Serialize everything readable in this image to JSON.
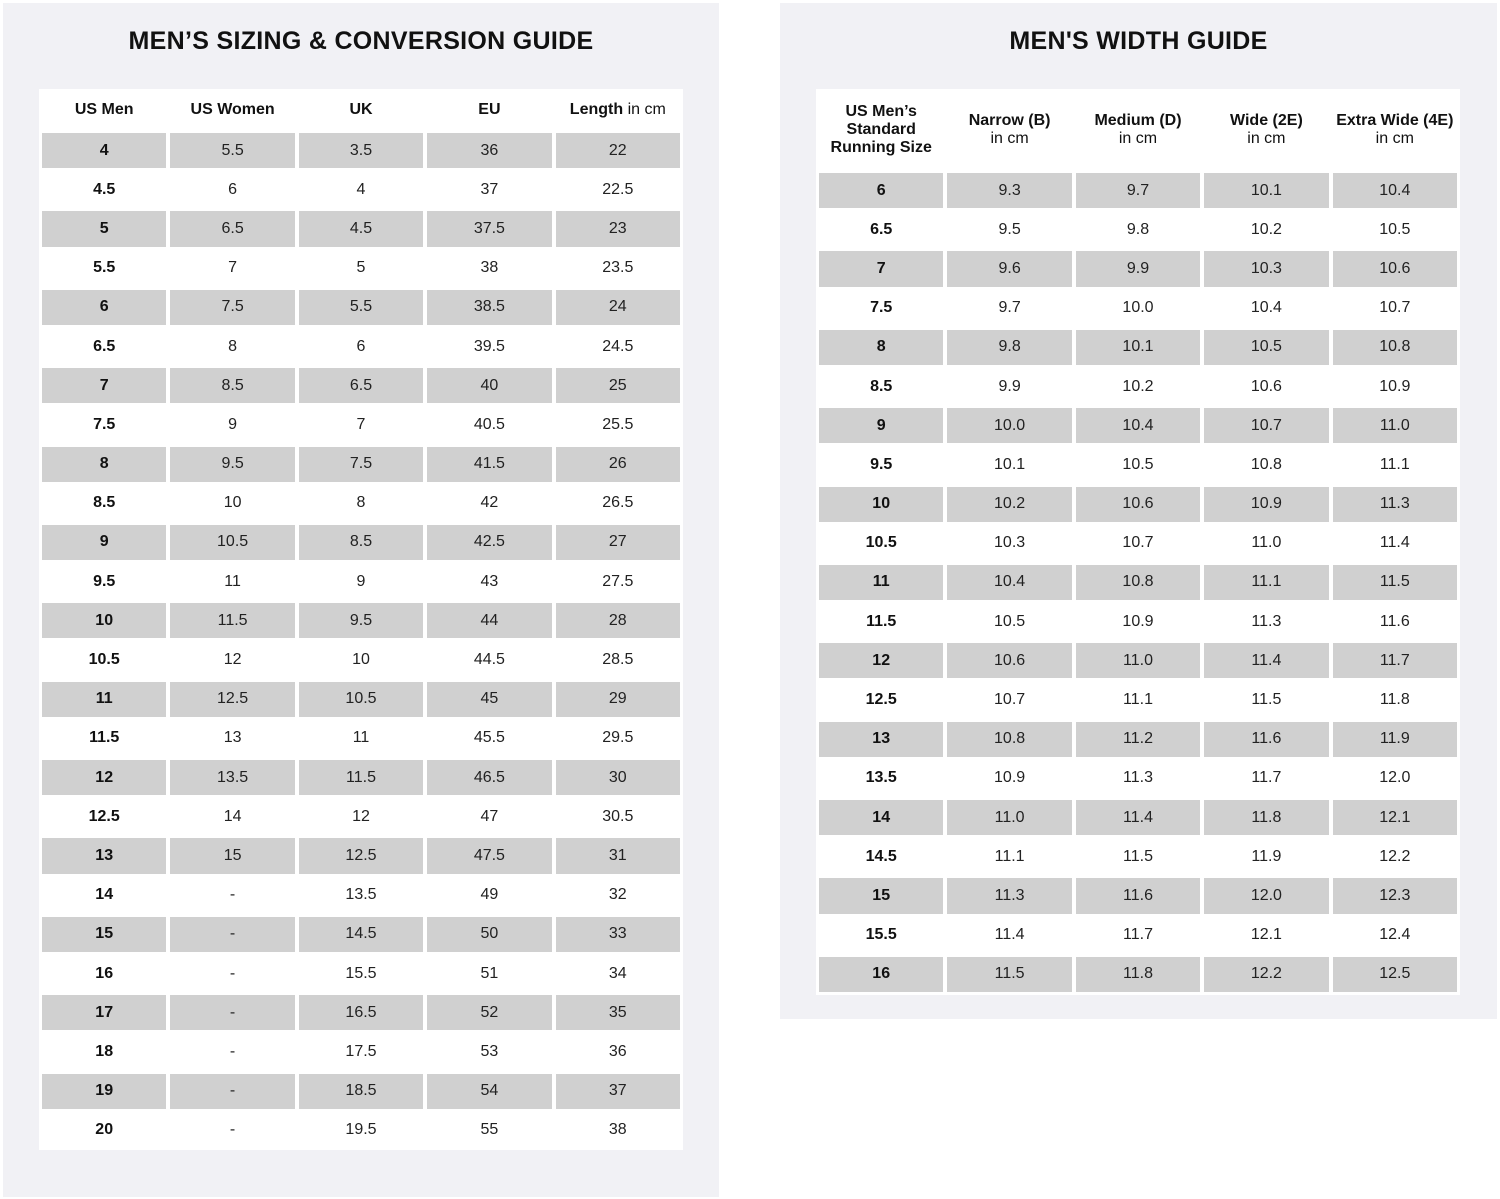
{
  "sizing": {
    "title": "MEN’S SIZING & CONVERSION GUIDE",
    "headers": [
      {
        "b": "US Men",
        "s": ""
      },
      {
        "b": "US Women",
        "s": ""
      },
      {
        "b": "UK",
        "s": ""
      },
      {
        "b": "EU",
        "s": ""
      },
      {
        "b": "Length",
        "s": " in cm"
      }
    ],
    "rows": [
      [
        "4",
        "5.5",
        "3.5",
        "36",
        "22"
      ],
      [
        "4.5",
        "6",
        "4",
        "37",
        "22.5"
      ],
      [
        "5",
        "6.5",
        "4.5",
        "37.5",
        "23"
      ],
      [
        "5.5",
        "7",
        "5",
        "38",
        "23.5"
      ],
      [
        "6",
        "7.5",
        "5.5",
        "38.5",
        "24"
      ],
      [
        "6.5",
        "8",
        "6",
        "39.5",
        "24.5"
      ],
      [
        "7",
        "8.5",
        "6.5",
        "40",
        "25"
      ],
      [
        "7.5",
        "9",
        "7",
        "40.5",
        "25.5"
      ],
      [
        "8",
        "9.5",
        "7.5",
        "41.5",
        "26"
      ],
      [
        "8.5",
        "10",
        "8",
        "42",
        "26.5"
      ],
      [
        "9",
        "10.5",
        "8.5",
        "42.5",
        "27"
      ],
      [
        "9.5",
        "11",
        "9",
        "43",
        "27.5"
      ],
      [
        "10",
        "11.5",
        "9.5",
        "44",
        "28"
      ],
      [
        "10.5",
        "12",
        "10",
        "44.5",
        "28.5"
      ],
      [
        "11",
        "12.5",
        "10.5",
        "45",
        "29"
      ],
      [
        "11.5",
        "13",
        "11",
        "45.5",
        "29.5"
      ],
      [
        "12",
        "13.5",
        "11.5",
        "46.5",
        "30"
      ],
      [
        "12.5",
        "14",
        "12",
        "47",
        "30.5"
      ],
      [
        "13",
        "15",
        "12.5",
        "47.5",
        "31"
      ],
      [
        "14",
        "-",
        "13.5",
        "49",
        "32"
      ],
      [
        "15",
        "-",
        "14.5",
        "50",
        "33"
      ],
      [
        "16",
        "-",
        "15.5",
        "51",
        "34"
      ],
      [
        "17",
        "-",
        "16.5",
        "52",
        "35"
      ],
      [
        "18",
        "-",
        "17.5",
        "53",
        "36"
      ],
      [
        "19",
        "-",
        "18.5",
        "54",
        "37"
      ],
      [
        "20",
        "-",
        "19.5",
        "55",
        "38"
      ]
    ]
  },
  "width": {
    "title": "MEN'S WIDTH GUIDE",
    "headers": [
      {
        "b": "US Men’s Standard Running Size",
        "s": ""
      },
      {
        "b": "Narrow (B)",
        "s": "in cm"
      },
      {
        "b": "Medium (D)",
        "s": "in cm"
      },
      {
        "b": "Wide (2E)",
        "s": "in cm"
      },
      {
        "b": "Extra Wide (4E)",
        "s": "in cm"
      }
    ],
    "rows": [
      [
        "6",
        "9.3",
        "9.7",
        "10.1",
        "10.4"
      ],
      [
        "6.5",
        "9.5",
        "9.8",
        "10.2",
        "10.5"
      ],
      [
        "7",
        "9.6",
        "9.9",
        "10.3",
        "10.6"
      ],
      [
        "7.5",
        "9.7",
        "10.0",
        "10.4",
        "10.7"
      ],
      [
        "8",
        "9.8",
        "10.1",
        "10.5",
        "10.8"
      ],
      [
        "8.5",
        "9.9",
        "10.2",
        "10.6",
        "10.9"
      ],
      [
        "9",
        "10.0",
        "10.4",
        "10.7",
        "11.0"
      ],
      [
        "9.5",
        "10.1",
        "10.5",
        "10.8",
        "11.1"
      ],
      [
        "10",
        "10.2",
        "10.6",
        "10.9",
        "11.3"
      ],
      [
        "10.5",
        "10.3",
        "10.7",
        "11.0",
        "11.4"
      ],
      [
        "11",
        "10.4",
        "10.8",
        "11.1",
        "11.5"
      ],
      [
        "11.5",
        "10.5",
        "10.9",
        "11.3",
        "11.6"
      ],
      [
        "12",
        "10.6",
        "11.0",
        "11.4",
        "11.7"
      ],
      [
        "12.5",
        "10.7",
        "11.1",
        "11.5",
        "11.8"
      ],
      [
        "13",
        "10.8",
        "11.2",
        "11.6",
        "11.9"
      ],
      [
        "13.5",
        "10.9",
        "11.3",
        "11.7",
        "12.0"
      ],
      [
        "14",
        "11.0",
        "11.4",
        "11.8",
        "12.1"
      ],
      [
        "14.5",
        "11.1",
        "11.5",
        "11.9",
        "12.2"
      ],
      [
        "15",
        "11.3",
        "11.6",
        "12.0",
        "12.3"
      ],
      [
        "15.5",
        "11.4",
        "11.7",
        "12.1",
        "12.4"
      ],
      [
        "16",
        "11.5",
        "11.8",
        "12.2",
        "12.5"
      ]
    ]
  },
  "colors": {
    "panel_bg": "#f1f1f5",
    "shaded_cell": "#d0d0d0"
  }
}
